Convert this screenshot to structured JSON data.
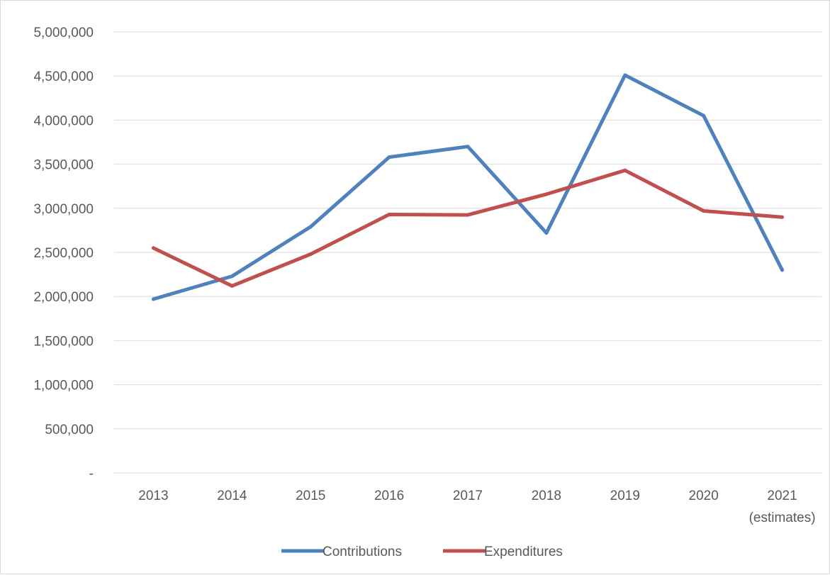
{
  "chart_data": {
    "type": "line",
    "title": "",
    "xlabel": "",
    "ylabel": "",
    "categories": [
      "2013",
      "2014",
      "2015",
      "2016",
      "2017",
      "2018",
      "2019",
      "2020",
      "2021"
    ],
    "category_sublabels": [
      "",
      "",
      "",
      "",
      "",
      "",
      "",
      "",
      "(estimates)"
    ],
    "ylim": [
      0,
      5000000
    ],
    "y_ticks": [
      0,
      500000,
      1000000,
      1500000,
      2000000,
      2500000,
      3000000,
      3500000,
      4000000,
      4500000,
      5000000
    ],
    "y_tick_labels": [
      "-",
      "500,000",
      "1,000,000",
      "1,500,000",
      "2,000,000",
      "2,500,000",
      "3,000,000",
      "3,500,000",
      "4,000,000",
      "4,500,000",
      "5,000,000"
    ],
    "grid": true,
    "legend_position": "bottom",
    "series": [
      {
        "name": "Contributions",
        "color": "#4f81bd",
        "values": [
          1970000,
          2230000,
          2790000,
          3580000,
          3700000,
          2720000,
          4510000,
          4050000,
          2300000
        ]
      },
      {
        "name": "Expenditures",
        "color": "#c0504d",
        "values": [
          2550000,
          2120000,
          2480000,
          2930000,
          2925000,
          3160000,
          3430000,
          2970000,
          2900000
        ]
      }
    ]
  }
}
